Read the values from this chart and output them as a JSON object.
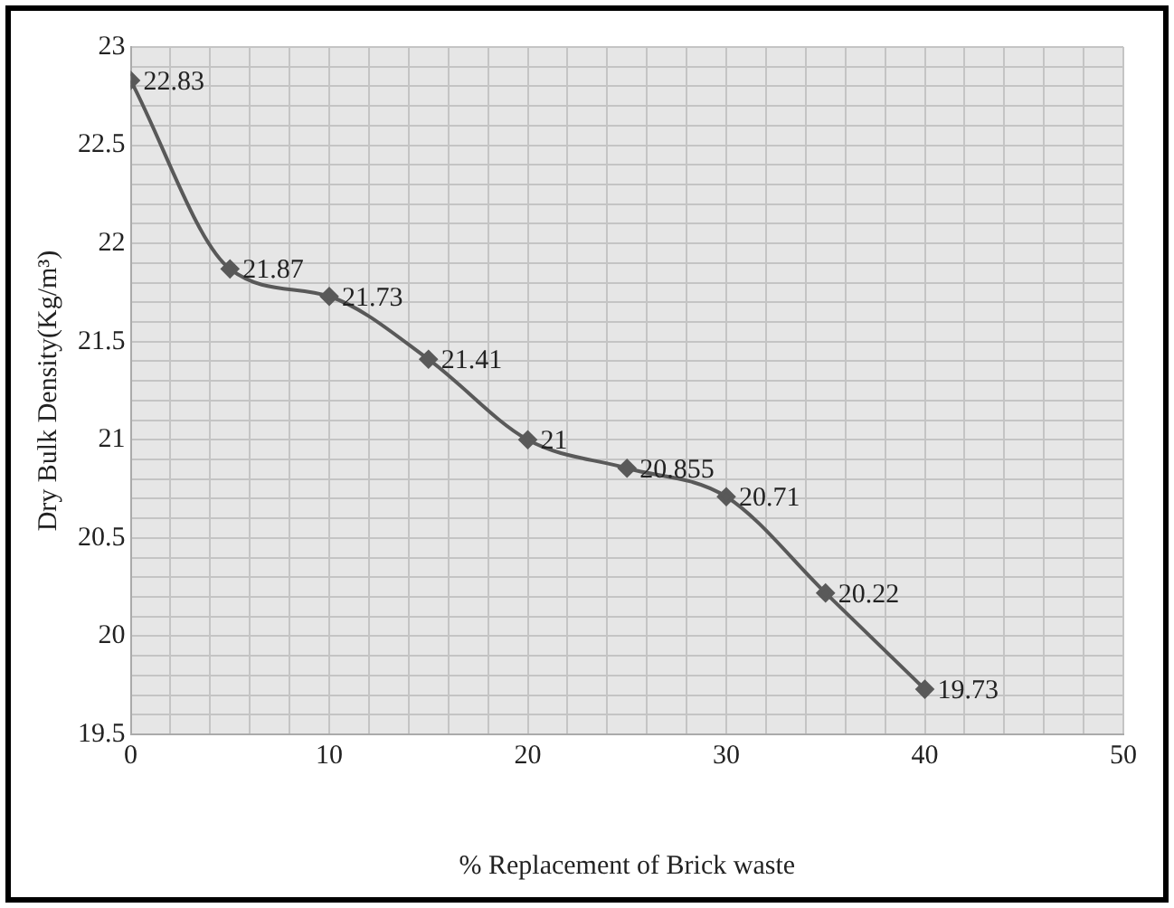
{
  "chart_data": {
    "type": "line",
    "xlabel": "% Replacement of Brick waste",
    "ylabel": "Dry Bulk Density(Kg/m³)",
    "x": [
      0,
      5,
      10,
      15,
      20,
      25,
      30,
      35,
      40
    ],
    "series": [
      {
        "color": "#595959",
        "values": [
          22.83,
          21.87,
          21.73,
          21.41,
          21,
          20.855,
          20.71,
          20.22,
          19.73
        ]
      }
    ],
    "xlim": [
      0,
      50
    ],
    "xticks": [
      0,
      {
        "value": 2,
        "label": null
      },
      {
        "value": 4,
        "label": null
      },
      {
        "value": 6,
        "label": null
      },
      {
        "value": 8,
        "label": null
      },
      10,
      {
        "value": 12,
        "label": null
      },
      {
        "value": 14,
        "label": null
      },
      {
        "value": 16,
        "label": null
      },
      {
        "value": 18,
        "label": null
      },
      20,
      {
        "value": 22,
        "label": null
      },
      {
        "value": 24,
        "label": null
      },
      {
        "value": 26,
        "label": null
      },
      {
        "value": 28,
        "label": null
      },
      30,
      {
        "value": 32,
        "label": null
      },
      {
        "value": 34,
        "label": null
      },
      {
        "value": 36,
        "label": null
      },
      {
        "value": 38,
        "label": null
      },
      40,
      {
        "value": 42,
        "label": null
      },
      {
        "value": 44,
        "label": null
      },
      {
        "value": 46,
        "label": null
      },
      {
        "value": 48,
        "label": null
      },
      50
    ],
    "ylim": [
      19.5,
      23
    ],
    "yticks": [
      19.5,
      {
        "value": 19.6,
        "label": null
      },
      {
        "value": 19.7,
        "label": null
      },
      {
        "value": 19.8,
        "label": null
      },
      {
        "value": 19.9,
        "label": null
      },
      20,
      {
        "value": 20.1,
        "label": null
      },
      {
        "value": 20.2,
        "label": null
      },
      {
        "value": 20.3,
        "label": null
      },
      {
        "value": 20.4,
        "label": null
      },
      20.5,
      {
        "value": 20.6,
        "label": null
      },
      {
        "value": 20.7,
        "label": null
      },
      {
        "value": 20.8,
        "label": null
      },
      {
        "value": 20.9,
        "label": null
      },
      21,
      {
        "value": 21.1,
        "label": null
      },
      {
        "value": 21.2,
        "label": null
      },
      {
        "value": 21.3,
        "label": null
      },
      {
        "value": 21.4,
        "label": null
      },
      21.5,
      {
        "value": 21.6,
        "label": null
      },
      {
        "value": 21.7,
        "label": null
      },
      {
        "value": 21.8,
        "label": null
      },
      {
        "value": 21.9,
        "label": null
      },
      22,
      {
        "value": 22.1,
        "label": null
      },
      {
        "value": 22.2,
        "label": null
      },
      {
        "value": 22.3,
        "label": null
      },
      {
        "value": 22.4,
        "label": null
      },
      22.5,
      {
        "value": 22.6,
        "label": null
      },
      {
        "value": 22.7,
        "label": null
      },
      {
        "value": 22.8,
        "label": null
      },
      {
        "value": 22.9,
        "label": null
      },
      23
    ],
    "grid": true,
    "marker": "diamond",
    "line_style": "solid",
    "data_labels": true,
    "legend": false
  }
}
